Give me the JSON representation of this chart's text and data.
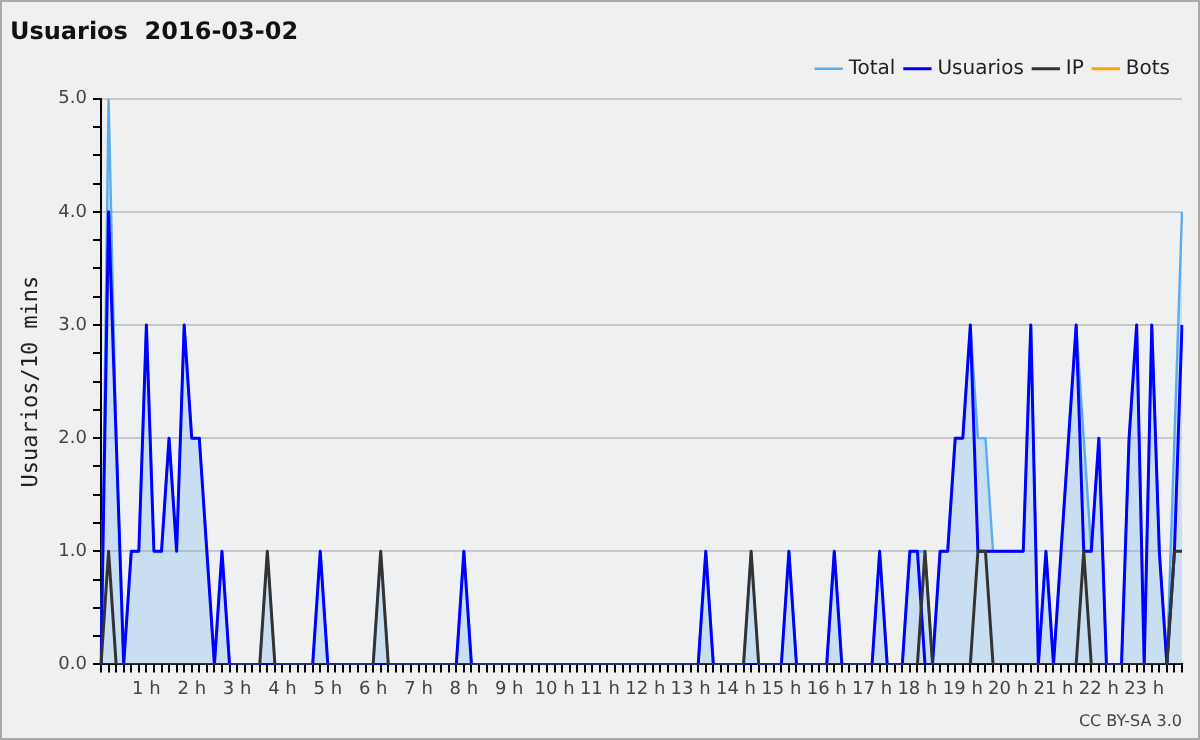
{
  "chart_data": {
    "type": "line",
    "title": "Usuarios  2016-03-02",
    "ylabel": "Usuarios/10 mins",
    "categories": [
      null,
      null,
      null,
      null,
      null,
      null,
      "1 h",
      null,
      null,
      null,
      null,
      null,
      "2 h",
      null,
      null,
      null,
      null,
      null,
      "3 h",
      null,
      null,
      null,
      null,
      null,
      "4 h",
      null,
      null,
      null,
      null,
      null,
      "5 h",
      null,
      null,
      null,
      null,
      null,
      "6 h",
      null,
      null,
      null,
      null,
      null,
      "7 h",
      null,
      null,
      null,
      null,
      null,
      "8 h",
      null,
      null,
      null,
      null,
      null,
      "9 h",
      null,
      null,
      null,
      null,
      null,
      "10 h",
      null,
      null,
      null,
      null,
      null,
      "11 h",
      null,
      null,
      null,
      null,
      null,
      "12 h",
      null,
      null,
      null,
      null,
      null,
      "13 h",
      null,
      null,
      null,
      null,
      null,
      "14 h",
      null,
      null,
      null,
      null,
      null,
      "15 h",
      null,
      null,
      null,
      null,
      null,
      "16 h",
      null,
      null,
      null,
      null,
      null,
      "17 h",
      null,
      null,
      null,
      null,
      null,
      "18 h",
      null,
      null,
      null,
      null,
      null,
      "19 h",
      null,
      null,
      null,
      null,
      null,
      "20 h",
      null,
      null,
      null,
      null,
      null,
      "21 h",
      null,
      null,
      null,
      null,
      null,
      "22 h",
      null,
      null,
      null,
      null,
      null,
      "23 h",
      null,
      null,
      null,
      null,
      null
    ],
    "series": [
      {
        "name": "Total",
        "type": "area",
        "color": "#5aacf0",
        "values": [
          0,
          5,
          2,
          0,
          1,
          1,
          3,
          1,
          1,
          2,
          1,
          3,
          2,
          2,
          1,
          0,
          1,
          0,
          0,
          0,
          0,
          0,
          1,
          0,
          0,
          0,
          0,
          0,
          0,
          1,
          0,
          0,
          0,
          0,
          0,
          0,
          0,
          1,
          0,
          0,
          0,
          0,
          0,
          0,
          0,
          0,
          0,
          0,
          1,
          0,
          0,
          0,
          0,
          0,
          0,
          0,
          0,
          0,
          0,
          0,
          0,
          0,
          0,
          0,
          0,
          0,
          0,
          0,
          0,
          0,
          0,
          0,
          0,
          0,
          0,
          0,
          0,
          0,
          0,
          0,
          1,
          0,
          0,
          0,
          0,
          0,
          1,
          0,
          0,
          0,
          0,
          1,
          0,
          0,
          0,
          0,
          0,
          1,
          0,
          0,
          0,
          0,
          0,
          1,
          0,
          0,
          0,
          1,
          1,
          1,
          0,
          1,
          1,
          2,
          2,
          3,
          2,
          2,
          1,
          1,
          1,
          1,
          1,
          3,
          0,
          1,
          0,
          1,
          2,
          3,
          2,
          1,
          2,
          0,
          0,
          0,
          2,
          3,
          0,
          3,
          1,
          0,
          2,
          4
        ]
      },
      {
        "name": "Usuarios",
        "type": "line",
        "color": "#0000ff",
        "values": [
          0,
          4,
          2,
          0,
          1,
          1,
          3,
          1,
          1,
          2,
          1,
          3,
          2,
          2,
          1,
          0,
          1,
          0,
          0,
          0,
          0,
          0,
          0,
          0,
          0,
          0,
          0,
          0,
          0,
          1,
          0,
          0,
          0,
          0,
          0,
          0,
          0,
          0,
          0,
          0,
          0,
          0,
          0,
          0,
          0,
          0,
          0,
          0,
          1,
          0,
          0,
          0,
          0,
          0,
          0,
          0,
          0,
          0,
          0,
          0,
          0,
          0,
          0,
          0,
          0,
          0,
          0,
          0,
          0,
          0,
          0,
          0,
          0,
          0,
          0,
          0,
          0,
          0,
          0,
          0,
          1,
          0,
          0,
          0,
          0,
          0,
          0,
          0,
          0,
          0,
          0,
          1,
          0,
          0,
          0,
          0,
          0,
          1,
          0,
          0,
          0,
          0,
          0,
          1,
          0,
          0,
          0,
          1,
          1,
          0,
          0,
          1,
          1,
          2,
          2,
          3,
          1,
          1,
          1,
          1,
          1,
          1,
          1,
          3,
          0,
          1,
          0,
          1,
          2,
          3,
          1,
          1,
          2,
          0,
          0,
          0,
          2,
          3,
          0,
          3,
          1,
          0,
          1,
          3
        ]
      },
      {
        "name": "IP",
        "type": "line",
        "color": "#333333",
        "values": [
          0,
          1,
          0,
          0,
          0,
          0,
          0,
          0,
          0,
          0,
          0,
          0,
          0,
          0,
          0,
          0,
          0,
          0,
          0,
          0,
          0,
          0,
          1,
          0,
          0,
          0,
          0,
          0,
          0,
          0,
          0,
          0,
          0,
          0,
          0,
          0,
          0,
          1,
          0,
          0,
          0,
          0,
          0,
          0,
          0,
          0,
          0,
          0,
          0,
          0,
          0,
          0,
          0,
          0,
          0,
          0,
          0,
          0,
          0,
          0,
          0,
          0,
          0,
          0,
          0,
          0,
          0,
          0,
          0,
          0,
          0,
          0,
          0,
          0,
          0,
          0,
          0,
          0,
          0,
          0,
          0,
          0,
          0,
          0,
          0,
          0,
          1,
          0,
          0,
          0,
          0,
          0,
          0,
          0,
          0,
          0,
          0,
          0,
          0,
          0,
          0,
          0,
          0,
          0,
          0,
          0,
          0,
          0,
          0,
          1,
          0,
          0,
          0,
          0,
          0,
          0,
          1,
          1,
          0,
          0,
          0,
          0,
          0,
          0,
          0,
          0,
          0,
          0,
          0,
          0,
          1,
          0,
          0,
          0,
          0,
          0,
          0,
          0,
          0,
          0,
          0,
          0,
          1,
          1
        ]
      },
      {
        "name": "Bots",
        "type": "line",
        "color": "#ffa500",
        "values": [
          null,
          null,
          null,
          null,
          null,
          null,
          null,
          null,
          null,
          null,
          null,
          null,
          null,
          null,
          null,
          null,
          null,
          null,
          null,
          null,
          null,
          null,
          null,
          null,
          null,
          null,
          null,
          null,
          null,
          null,
          null,
          null,
          null,
          null,
          null,
          null,
          null,
          null,
          null,
          null,
          null,
          null,
          null,
          null,
          null,
          null,
          null,
          null,
          null,
          null,
          null,
          null,
          null,
          null,
          null,
          null,
          null,
          null,
          null,
          null,
          null,
          null,
          null,
          null,
          null,
          null,
          null,
          null,
          null,
          null,
          null,
          null,
          null,
          null,
          null,
          null,
          null,
          null,
          null,
          null,
          null,
          null,
          null,
          null,
          null,
          null,
          null,
          null,
          null,
          null,
          null,
          null,
          null,
          null,
          null,
          null,
          null,
          null,
          null,
          null,
          null,
          null,
          null,
          null,
          null,
          null,
          null,
          null,
          null,
          null,
          null,
          null,
          null,
          null,
          null,
          null,
          null,
          null,
          null,
          null,
          null,
          null,
          null,
          null,
          null,
          null,
          null,
          null,
          null,
          null,
          null,
          null,
          null,
          null,
          null,
          null,
          null,
          null,
          null,
          null,
          null,
          null,
          null,
          null
        ]
      }
    ],
    "ylim": [
      0,
      5
    ],
    "yticks": [
      {
        "value": 0,
        "label": "0.0"
      },
      {
        "value": 0.25,
        "label": null
      },
      {
        "value": 0.5,
        "label": null
      },
      {
        "value": 0.75,
        "label": null
      },
      {
        "value": 1,
        "label": "1.0"
      },
      {
        "value": 1.25,
        "label": null
      },
      {
        "value": 1.5,
        "label": null
      },
      {
        "value": 1.75,
        "label": null
      },
      {
        "value": 2,
        "label": "2.0"
      },
      {
        "value": 2.25,
        "label": null
      },
      {
        "value": 2.5,
        "label": null
      },
      {
        "value": 2.75,
        "label": null
      },
      {
        "value": 3,
        "label": "3.0"
      },
      {
        "value": 3.25,
        "label": null
      },
      {
        "value": 3.5,
        "label": null
      },
      {
        "value": 3.75,
        "label": null
      },
      {
        "value": 4,
        "label": "4.0"
      },
      {
        "value": 4.25,
        "label": null
      },
      {
        "value": 4.5,
        "label": null
      },
      {
        "value": 4.75,
        "label": null
      },
      {
        "value": 5,
        "label": "5.0"
      }
    ],
    "grid": "y",
    "legend": "top right",
    "marker": "none",
    "line_style": "solid",
    "annotations": [
      "CC BY-SA 3.0"
    ]
  }
}
